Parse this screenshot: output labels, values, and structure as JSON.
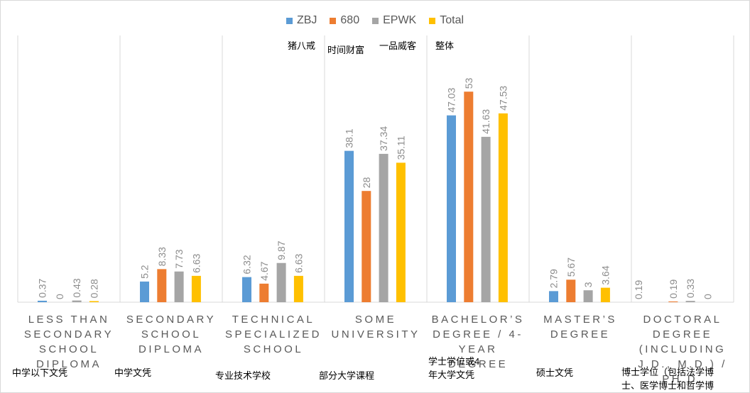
{
  "chart_data": {
    "type": "bar",
    "categories": [
      "Less than secondary school diploma",
      "Secondary school diploma",
      "Technical specialized school",
      "Some university",
      "Bachelor’s degree / 4-year degree",
      "Master’s degree",
      "Doctoral degree (including J.D., M.D.) / Ph.D."
    ],
    "categories_cn": [
      "中学以下文凭",
      "中学文凭",
      "专业技术学校",
      "部分大学课程",
      "学士学位或4\n年大学文凭",
      "硕士文凭",
      "博士学位（包括法学博\n士、医学博士和哲学博"
    ],
    "series": [
      {
        "name": "ZBJ",
        "color": "#5b9bd5",
        "values": [
          0.37,
          5.2,
          6.32,
          38.1,
          47.03,
          2.79,
          null
        ],
        "labels": [
          "0.37",
          "5.2",
          "6.32",
          "38.1",
          "47.03",
          "2.79",
          ""
        ]
      },
      {
        "name": "680",
        "color": "#ed7d31",
        "values": [
          0,
          8.33,
          4.67,
          28,
          53,
          5.67,
          0.19
        ],
        "labels": [
          "0",
          "8.33",
          "4.67",
          "28",
          "53",
          "5.67",
          "0.19"
        ]
      },
      {
        "name": "EPWK",
        "color": "#a5a5a5",
        "values": [
          0.43,
          7.73,
          9.87,
          37.34,
          41.63,
          3,
          0.33
        ],
        "labels": [
          "0.43",
          "7.73",
          "9.87",
          "37.34",
          "41.63",
          "3",
          "0.33"
        ]
      },
      {
        "name": "Total",
        "color": "#ffc000",
        "values": [
          0.28,
          6.63,
          6.63,
          35.11,
          47.53,
          3.64,
          0
        ],
        "labels": [
          "0.28",
          "6.63",
          "6.63",
          "35.11",
          "47.53",
          "3.64",
          "0"
        ]
      }
    ],
    "extra_labels": [
      "",
      "",
      "",
      "",
      "",
      "",
      "0.19"
    ],
    "legend_cn": [
      "猪八戒",
      "时间财富",
      "一品威客",
      "整体"
    ],
    "ylim": [
      0,
      60
    ],
    "grid": false,
    "legend_position": "top"
  }
}
